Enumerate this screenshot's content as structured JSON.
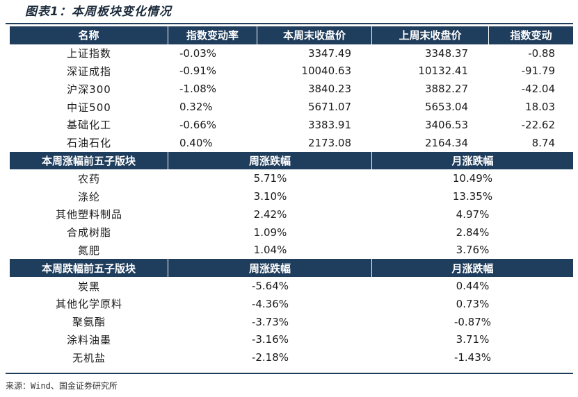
{
  "title": "图表1：本周板块变化情况",
  "indices": {
    "headers": [
      "名称",
      "指数变动率",
      "本周末收盘价",
      "上周末收盘价",
      "指数变动"
    ],
    "rows": [
      [
        "上证指数",
        "-0.03%",
        "3347.49",
        "3348.37",
        "-0.88"
      ],
      [
        "深证成指",
        "-0.91%",
        "10040.63",
        "10132.41",
        "-91.79"
      ],
      [
        "沪深300",
        "-1.08%",
        "3840.23",
        "3882.27",
        "-42.04"
      ],
      [
        "中证500",
        "0.32%",
        "5671.07",
        "5653.04",
        "18.03"
      ],
      [
        "基础化工",
        "-0.66%",
        "3383.91",
        "3406.53",
        "-22.62"
      ],
      [
        "石油石化",
        "0.40%",
        "2173.08",
        "2164.34",
        "8.74"
      ]
    ]
  },
  "top_gainers": {
    "headers": [
      "本周涨幅前五子版块",
      "周涨跌幅",
      "月涨跌幅"
    ],
    "rows": [
      [
        "农药",
        "5.71%",
        "10.49%"
      ],
      [
        "涤纶",
        "3.10%",
        "13.35%"
      ],
      [
        "其他塑料制品",
        "2.42%",
        "4.97%"
      ],
      [
        "合成树脂",
        "1.09%",
        "2.84%"
      ],
      [
        "氮肥",
        "1.04%",
        "3.76%"
      ]
    ]
  },
  "top_losers": {
    "headers": [
      "本周跌幅前五子版块",
      "周涨跌幅",
      "月涨跌幅"
    ],
    "rows": [
      [
        "炭黑",
        "-5.64%",
        "0.44%"
      ],
      [
        "其他化学原料",
        "-4.36%",
        "0.73%"
      ],
      [
        "聚氨酯",
        "-3.73%",
        "-0.87%"
      ],
      [
        "涂料油墨",
        "-3.16%",
        "3.71%"
      ],
      [
        "无机盐",
        "-2.18%",
        "-1.43%"
      ]
    ]
  },
  "source": "来源：Wind、国金证券研究所"
}
